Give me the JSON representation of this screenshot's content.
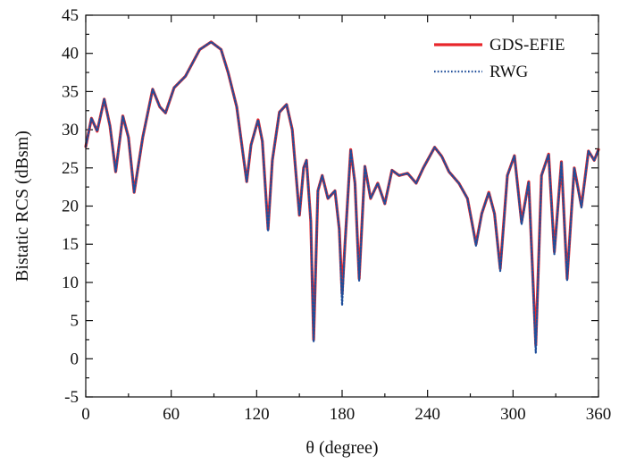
{
  "chart_data": {
    "type": "line",
    "xlabel": "θ (degree)",
    "ylabel": "Bistatic RCS (dBsm)",
    "xlim": [
      0,
      360
    ],
    "ylim": [
      -5,
      45
    ],
    "xticks": [
      0,
      60,
      120,
      180,
      240,
      300,
      360
    ],
    "yticks": [
      -5,
      0,
      5,
      10,
      15,
      20,
      25,
      30,
      35,
      40,
      45
    ],
    "grid": false,
    "legend": "top-right",
    "series": [
      {
        "name": "GDS-EFIE",
        "color": "#e8262b",
        "style": "solid",
        "x": [
          0,
          4,
          8,
          13,
          17,
          21,
          26,
          30,
          34,
          40,
          47,
          52,
          56,
          62,
          70,
          80,
          88,
          95,
          100,
          106,
          113,
          116,
          121,
          124,
          128,
          131,
          136,
          141,
          145,
          150,
          153,
          155,
          158,
          160,
          163,
          166,
          170,
          175,
          178,
          180,
          182,
          186,
          189,
          192,
          196,
          200,
          205,
          210,
          215,
          220,
          226,
          232,
          237,
          245,
          250,
          255,
          262,
          268,
          271,
          274,
          278,
          283,
          287,
          291,
          296,
          301,
          306,
          311,
          316,
          320,
          325,
          329,
          334,
          338,
          343,
          348,
          353,
          357,
          360
        ],
        "y": [
          27.8,
          31.5,
          29.8,
          34.0,
          30.5,
          24.5,
          31.8,
          29.0,
          21.8,
          29.0,
          35.3,
          33.0,
          32.2,
          35.5,
          37.0,
          40.5,
          41.5,
          40.5,
          37.5,
          33.0,
          23.2,
          28.0,
          31.3,
          28.5,
          17.0,
          26.0,
          32.3,
          33.3,
          30.0,
          18.8,
          25.0,
          26.0,
          18.0,
          2.5,
          22.0,
          24.0,
          21.0,
          22.0,
          17.0,
          8.5,
          15.0,
          27.4,
          23.0,
          10.5,
          25.2,
          21.0,
          23.0,
          20.3,
          24.7,
          24.0,
          24.3,
          23.0,
          25.0,
          27.7,
          26.5,
          24.5,
          23.0,
          21.0,
          18.0,
          15.0,
          19.0,
          21.8,
          19.0,
          11.8,
          24.0,
          26.6,
          17.9,
          23.2,
          1.8,
          24.0,
          26.8,
          14.0,
          25.8,
          10.5,
          25.0,
          20.0,
          27.2,
          26.0,
          27.4
        ]
      },
      {
        "name": "RWG",
        "color": "#1f4e9a",
        "style": "dotted",
        "x": [
          0,
          4,
          8,
          13,
          17,
          21,
          26,
          30,
          34,
          40,
          47,
          52,
          56,
          62,
          70,
          80,
          88,
          95,
          100,
          106,
          113,
          116,
          121,
          124,
          128,
          131,
          136,
          141,
          145,
          150,
          153,
          155,
          158,
          160,
          163,
          166,
          170,
          175,
          178,
          180,
          182,
          186,
          189,
          192,
          196,
          200,
          205,
          210,
          215,
          220,
          226,
          232,
          237,
          245,
          250,
          255,
          262,
          268,
          271,
          274,
          278,
          283,
          287,
          291,
          296,
          301,
          306,
          311,
          316,
          320,
          325,
          329,
          334,
          338,
          343,
          348,
          353,
          357,
          360
        ],
        "y": [
          27.8,
          31.5,
          29.8,
          34.0,
          30.5,
          24.5,
          31.8,
          29.0,
          21.8,
          29.0,
          35.3,
          33.0,
          32.2,
          35.5,
          37.0,
          40.5,
          41.5,
          40.5,
          37.5,
          33.0,
          23.2,
          28.0,
          31.3,
          28.5,
          16.7,
          26.0,
          32.3,
          33.3,
          30.0,
          18.8,
          25.0,
          26.0,
          18.0,
          2.2,
          22.0,
          24.0,
          21.0,
          22.0,
          17.0,
          7.0,
          15.0,
          27.4,
          23.0,
          10.2,
          25.2,
          21.0,
          23.0,
          20.3,
          24.7,
          24.0,
          24.3,
          23.0,
          25.0,
          27.7,
          26.5,
          24.5,
          23.0,
          21.0,
          18.0,
          14.8,
          19.0,
          21.8,
          19.0,
          11.5,
          24.0,
          26.6,
          17.6,
          23.2,
          0.8,
          24.0,
          26.8,
          13.7,
          25.8,
          10.3,
          25.0,
          19.8,
          27.2,
          26.0,
          27.4
        ]
      }
    ]
  }
}
